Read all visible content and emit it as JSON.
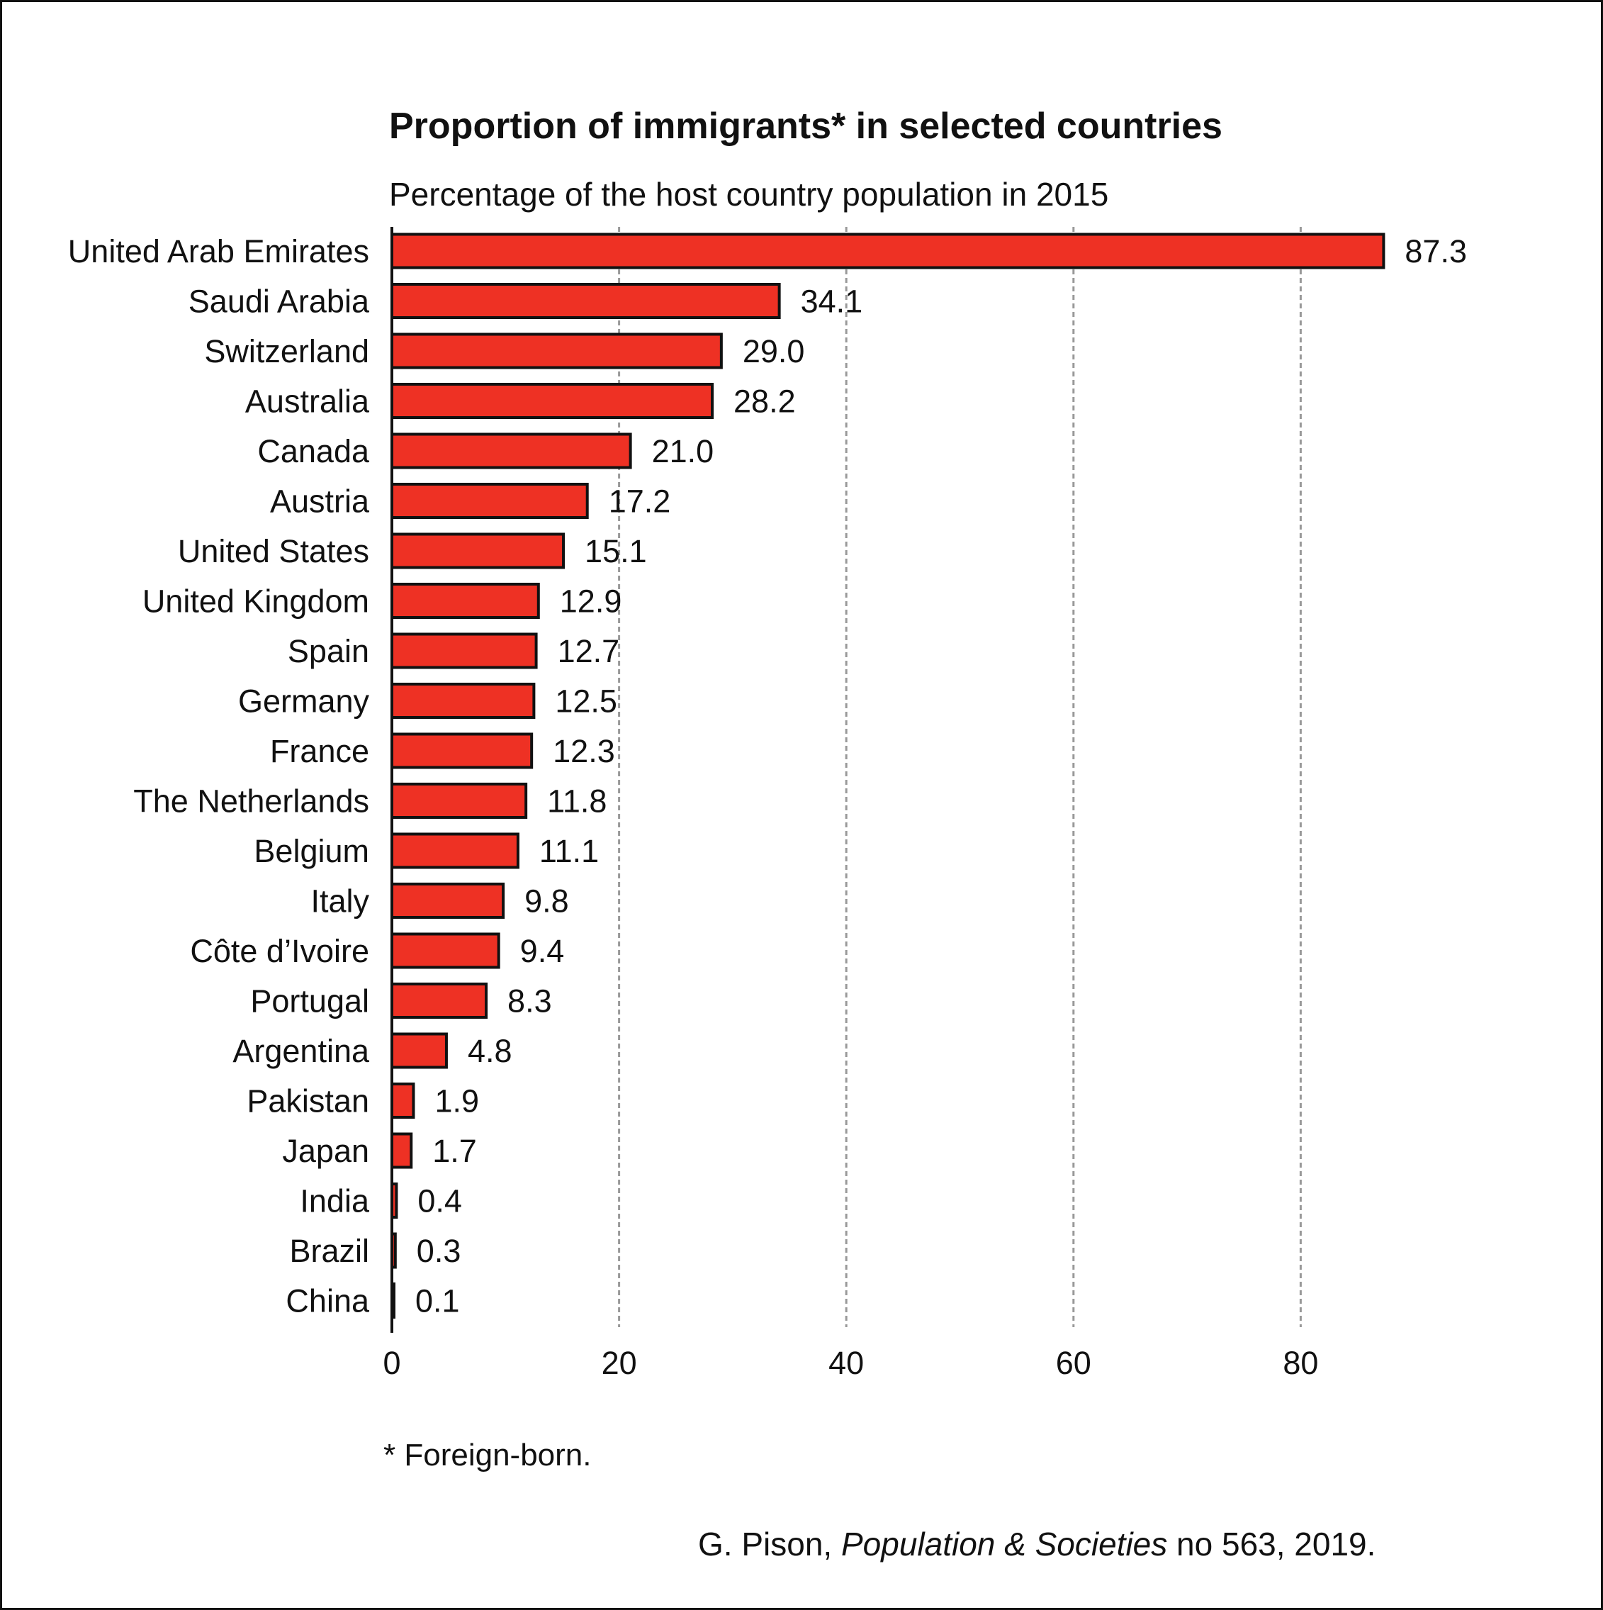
{
  "chart_data": {
    "type": "bar",
    "orientation": "horizontal",
    "title": "Proportion of immigrants* in selected countries",
    "subtitle": "Percentage of the host country population in 2015",
    "categories": [
      "United Arab Emirates",
      "Saudi Arabia",
      "Switzerland",
      "Australia",
      "Canada",
      "Austria",
      "United States",
      "United Kingdom",
      "Spain",
      "Germany",
      "France",
      "The Netherlands",
      "Belgium",
      "Italy",
      "Côte d’Ivoire",
      "Portugal",
      "Argentina",
      "Pakistan",
      "Japan",
      "India",
      "Brazil",
      "China"
    ],
    "values": [
      87.3,
      34.1,
      29.0,
      28.2,
      21.0,
      17.2,
      15.1,
      12.9,
      12.7,
      12.5,
      12.3,
      11.8,
      11.1,
      9.8,
      9.4,
      8.3,
      4.8,
      1.9,
      1.7,
      0.4,
      0.3,
      0.1
    ],
    "data_labels": [
      "87.3",
      "34.1",
      "29.0",
      "28.2",
      "21.0",
      "17.2",
      "15.1",
      "12.9",
      "12.7",
      "12.5",
      "12.3",
      "11.8",
      "11.1",
      "9.8",
      "9.4",
      "8.3",
      "4.8",
      "1.9",
      "1.7",
      "0.4",
      "0.3",
      "0.1"
    ],
    "xticks": [
      "0",
      "20",
      "40",
      "60",
      "80"
    ],
    "xlim": [
      0,
      90
    ],
    "grid": "vertical dashed",
    "bar_color": "#ee3124",
    "bar_edge_color": "#111111",
    "footnote": "* Foreign-born.",
    "source": {
      "author": "G. Pison, ",
      "publication": "Population & Societies",
      "rest": " no 563, 2019."
    }
  }
}
